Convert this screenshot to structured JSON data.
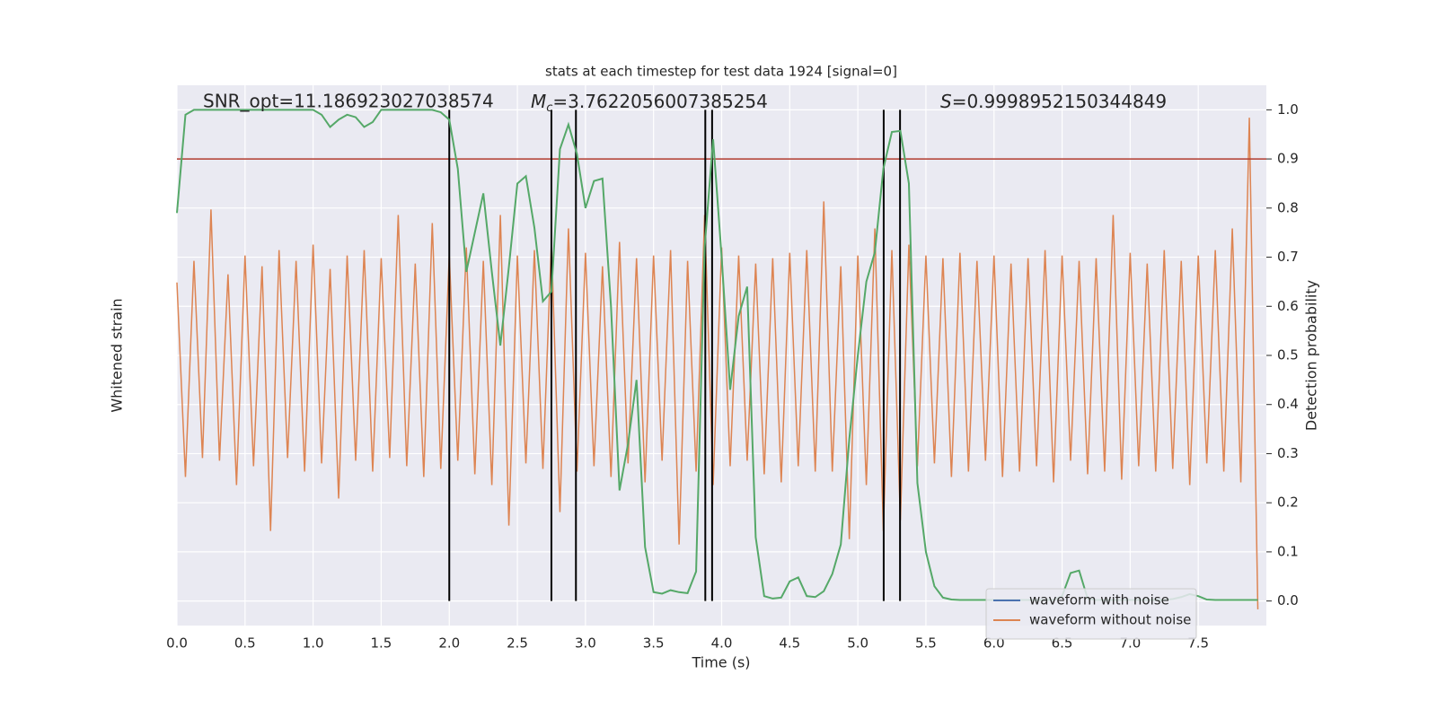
{
  "chart_data": {
    "type": "line",
    "title": "stats at each timestep for test data 1924 [signal=0]",
    "annotations": [
      {
        "text": "SNR_opt=11.186923027038574"
      },
      {
        "symbol": "M",
        "subscript": "c",
        "text": "=3.7622056007385254"
      },
      {
        "symbol": "S",
        "text": "=0.9998952150344849"
      }
    ],
    "xlabel": "Time (s)",
    "ylabel": "Whitened strain",
    "y2label": "Detection probability",
    "xlim": [
      0,
      8
    ],
    "xticks": [
      {
        "value": 0,
        "label": "0.0"
      },
      0.5,
      {
        "value": 1,
        "label": "1.0"
      },
      1.5,
      {
        "value": 2,
        "label": "2.0"
      },
      2.5,
      {
        "value": 3,
        "label": "3.0"
      },
      3.5,
      {
        "value": 4,
        "label": "4.0"
      },
      4.5,
      {
        "value": 5,
        "label": "5.0"
      },
      5.5,
      {
        "value": 6,
        "label": "6.0"
      },
      6.5,
      {
        "value": 7,
        "label": "7.0"
      },
      7.5
    ],
    "ylim": [
      -0.97,
      1.03
    ],
    "y2lim": [
      -0.05,
      1.05
    ],
    "y2ticks": [
      {
        "value": 0,
        "label": "0.0"
      },
      0.1,
      0.2,
      0.3,
      0.4,
      0.5,
      0.6,
      0.7,
      0.8,
      0.9,
      {
        "value": 1,
        "label": "1.0"
      }
    ],
    "grid": true,
    "legend_loc": "lower right",
    "x": [
      0,
      0.0625,
      0.125,
      0.1875,
      0.25,
      0.3125,
      0.375,
      0.4375,
      0.5,
      0.5625,
      0.625,
      0.6875,
      0.75,
      0.8125,
      0.875,
      0.9375,
      1,
      1.0625,
      1.125,
      1.1875,
      1.25,
      1.3125,
      1.375,
      1.4375,
      1.5,
      1.5625,
      1.625,
      1.6875,
      1.75,
      1.8125,
      1.875,
      1.9375,
      2,
      2.0625,
      2.125,
      2.1875,
      2.25,
      2.3125,
      2.375,
      2.4375,
      2.5,
      2.5625,
      2.625,
      2.6875,
      2.75,
      2.8125,
      2.875,
      2.9375,
      3,
      3.0625,
      3.125,
      3.1875,
      3.25,
      3.3125,
      3.375,
      3.4375,
      3.5,
      3.5625,
      3.625,
      3.6875,
      3.75,
      3.8125,
      3.875,
      3.9375,
      4,
      4.0625,
      4.125,
      4.1875,
      4.25,
      4.3125,
      4.375,
      4.4375,
      4.5,
      4.5625,
      4.625,
      4.6875,
      4.75,
      4.8125,
      4.875,
      4.9375,
      5,
      5.0625,
      5.125,
      5.1875,
      5.25,
      5.3125,
      5.375,
      5.4375,
      5.5,
      5.5625,
      5.625,
      5.6875,
      5.75,
      5.8125,
      5.875,
      5.9375,
      6,
      6.0625,
      6.125,
      6.1875,
      6.25,
      6.3125,
      6.375,
      6.4375,
      6.5,
      6.5625,
      6.625,
      6.6875,
      6.75,
      6.8125,
      6.875,
      6.9375,
      7,
      7.0625,
      7.125,
      7.1875,
      7.25,
      7.3125,
      7.375,
      7.4375,
      7.5,
      7.5625,
      7.625,
      7.6875,
      7.75,
      7.8125,
      7.875,
      7.9375
    ],
    "hidden_series": [
      {
        "name": "waveform with noise",
        "color": "#4c72b0"
      }
    ],
    "series": [
      {
        "name": "waveform without noise",
        "color": "#dd8452",
        "values": [
          0.3,
          -0.42,
          0.38,
          -0.35,
          0.57,
          -0.36,
          0.33,
          -0.45,
          0.4,
          -0.38,
          0.36,
          -0.62,
          0.42,
          -0.35,
          0.38,
          -0.4,
          0.44,
          -0.37,
          0.35,
          -0.5,
          0.4,
          -0.36,
          0.42,
          -0.4,
          0.39,
          -0.35,
          0.55,
          -0.38,
          0.37,
          -0.42,
          0.52,
          -0.39,
          0.4,
          -0.36,
          0.43,
          -0.41,
          0.38,
          -0.45,
          0.55,
          -0.6,
          0.4,
          -0.37,
          0.42,
          -0.39,
          0.45,
          -0.55,
          0.5,
          -0.4,
          0.41,
          -0.38,
          0.36,
          -0.42,
          0.45,
          -0.37,
          0.39,
          -0.44,
          0.4,
          -0.36,
          0.42,
          -0.67,
          0.38,
          -0.4,
          0.55,
          -0.45,
          0.43,
          -0.38,
          0.4,
          -0.36,
          0.37,
          -0.41,
          0.39,
          -0.44,
          0.41,
          -0.38,
          0.42,
          -0.4,
          0.6,
          -0.4,
          0.36,
          -0.65,
          0.4,
          -0.45,
          0.5,
          -0.62,
          0.42,
          -0.58,
          0.44,
          -0.38,
          0.4,
          -0.37,
          0.39,
          -0.42,
          0.41,
          -0.4,
          0.38,
          -0.36,
          0.4,
          -0.42,
          0.37,
          -0.4,
          0.39,
          -0.38,
          0.42,
          -0.44,
          0.4,
          -0.36,
          0.38,
          -0.41,
          0.39,
          -0.4,
          0.55,
          -0.43,
          0.41,
          -0.38,
          0.37,
          -0.4,
          0.42,
          -0.39,
          0.38,
          -0.45,
          0.4,
          -0.37,
          0.42,
          -0.4,
          0.5,
          -0.44,
          0.91,
          -0.91
        ]
      },
      {
        "color": "#55a868",
        "axis": "y2",
        "values": [
          0.79,
          0.99,
          1,
          1,
          1,
          1,
          1,
          1,
          1,
          1,
          1,
          1,
          1,
          1,
          1,
          1,
          1,
          0.99,
          0.965,
          0.98,
          0.99,
          0.985,
          0.965,
          0.975,
          1,
          1,
          1,
          1,
          1,
          1,
          1,
          0.995,
          0.98,
          0.88,
          0.67,
          0.75,
          0.83,
          0.67,
          0.52,
          0.68,
          0.85,
          0.865,
          0.76,
          0.61,
          0.63,
          0.92,
          0.97,
          0.91,
          0.8,
          0.855,
          0.86,
          0.6,
          0.225,
          0.32,
          0.45,
          0.11,
          0.018,
          0.015,
          0.022,
          0.018,
          0.016,
          0.06,
          0.72,
          0.94,
          0.7,
          0.43,
          0.58,
          0.64,
          0.13,
          0.01,
          0.005,
          0.007,
          0.04,
          0.048,
          0.01,
          0.008,
          0.02,
          0.055,
          0.115,
          0.33,
          0.5,
          0.65,
          0.71,
          0.88,
          0.955,
          0.957,
          0.85,
          0.24,
          0.1,
          0.03,
          0.007,
          0.003,
          0.002,
          0.002,
          0.002,
          0.002,
          0.002,
          0.002,
          0.002,
          0.002,
          0.002,
          0.002,
          0.002,
          0.002,
          0.01,
          0.057,
          0.062,
          0.005,
          0.002,
          0.002,
          0.002,
          0.002,
          0.002,
          0.002,
          0.002,
          0.002,
          0.002,
          0.004,
          0.008,
          0.014,
          0.01,
          0.003,
          0.002,
          0.002,
          0.002,
          0.002,
          0.002,
          0.002
        ]
      }
    ],
    "threshold": 0.9,
    "threshold_color": "#b03a2e",
    "vlines": [
      2.0,
      2.75,
      2.93,
      3.88,
      3.93,
      5.19,
      5.31
    ],
    "vline_span": [
      0,
      1
    ],
    "vline_color": "#000000"
  }
}
